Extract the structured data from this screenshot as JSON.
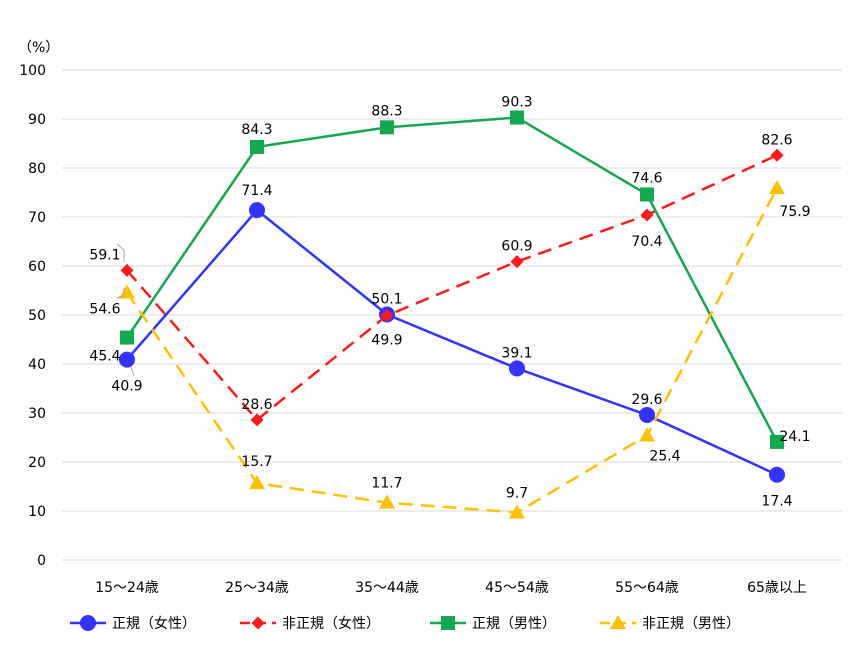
{
  "chart_data": {
    "type": "line",
    "unit_label": "（%）",
    "categories": [
      "15～24歳",
      "25～34歳",
      "35～44歳",
      "45～54歳",
      "55～64歳",
      "65歳以上"
    ],
    "ylim": [
      0,
      100
    ],
    "yticks": [
      0,
      10,
      20,
      30,
      40,
      50,
      60,
      70,
      80,
      90,
      100
    ],
    "grid": true,
    "legend_position": "bottom",
    "series": [
      {
        "name": "正規（女性）",
        "color": "#3333ff",
        "marker": "circle",
        "dash": "solid",
        "values": [
          40.9,
          71.4,
          50.1,
          39.1,
          29.6,
          17.4
        ]
      },
      {
        "name": "非正規（女性）",
        "color": "#ff1a1a",
        "marker": "diamond",
        "dash": "dashed",
        "values": [
          59.1,
          28.6,
          49.9,
          60.9,
          70.4,
          82.6
        ]
      },
      {
        "name": "正規（男性）",
        "color": "#12a84e",
        "marker": "square",
        "dash": "solid",
        "values": [
          45.4,
          84.3,
          88.3,
          90.3,
          74.6,
          24.1
        ]
      },
      {
        "name": "非正規（男性）",
        "color": "#ffc000",
        "marker": "triangle",
        "dash": "dashed",
        "values": [
          54.6,
          15.7,
          11.7,
          9.7,
          25.4,
          75.9
        ]
      }
    ]
  }
}
